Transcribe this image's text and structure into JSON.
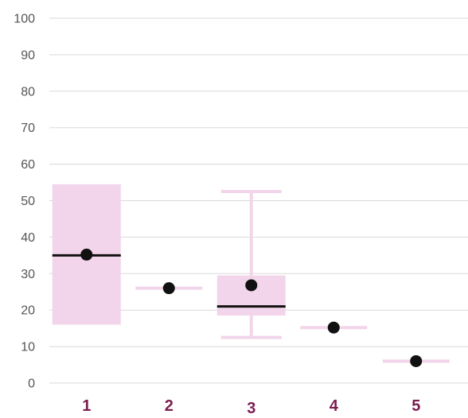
{
  "chart_data": {
    "type": "boxplot",
    "title": "",
    "xlabel": "",
    "ylabel": "",
    "ylim": [
      0,
      100
    ],
    "yticks": [
      0,
      10,
      20,
      30,
      40,
      50,
      60,
      70,
      80,
      90,
      100
    ],
    "grid": "horizontal",
    "legend": "none",
    "categories": [
      "1",
      "2",
      "3",
      "4",
      "5"
    ],
    "boxes": [
      {
        "category": "1",
        "whisker_low": 16,
        "q1": 16,
        "median": 35,
        "q3": 54.5,
        "whisker_high": 54.5,
        "mean": 35.2
      },
      {
        "category": "2",
        "whisker_low": 26,
        "q1": 26,
        "median": 26,
        "q3": 26,
        "whisker_high": 26,
        "mean": 26
      },
      {
        "category": "3",
        "whisker_low": 12.5,
        "q1": 18.5,
        "median": 21,
        "q3": 29.5,
        "whisker_high": 52.5,
        "mean": 26.8
      },
      {
        "category": "4",
        "whisker_low": 15.2,
        "q1": 15.2,
        "median": 15.2,
        "q3": 15.2,
        "whisker_high": 15.2,
        "mean": 15.2
      },
      {
        "category": "5",
        "whisker_low": 6,
        "q1": 6,
        "median": 6,
        "q3": 6,
        "whisker_high": 6,
        "mean": 6
      }
    ],
    "colors": {
      "box_fill": "#f2d5ea",
      "whisker": "#f2d5ea",
      "median": "#111111",
      "mean_marker": "#111111",
      "grid": "#d9d9d9",
      "x_tick_label": "#7a1f4f",
      "y_tick_label": "#555555"
    }
  }
}
